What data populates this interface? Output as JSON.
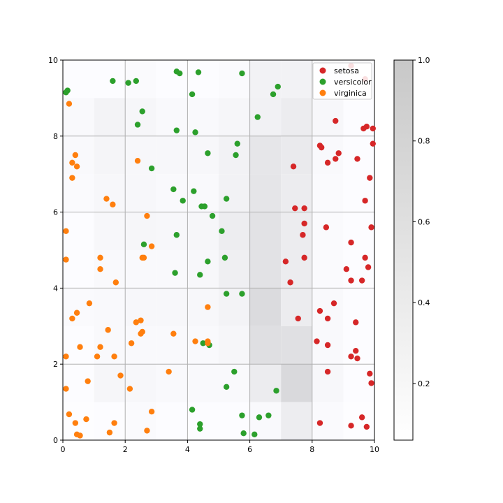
{
  "chart_data": {
    "type": "scatter",
    "title": "",
    "xlabel": "",
    "ylabel": "",
    "xlim": [
      0,
      10
    ],
    "ylim": [
      0,
      10
    ],
    "xticks": [
      "0",
      "2",
      "4",
      "6",
      "8",
      "10"
    ],
    "yticks": [
      "0",
      "2",
      "4",
      "6",
      "8",
      "10"
    ],
    "grid": true,
    "legend_position": "top-right",
    "background_heatmap": {
      "x_bins": [
        0,
        1,
        2,
        3,
        4,
        5,
        6,
        7,
        8,
        9,
        10
      ],
      "y_bins": [
        0,
        1,
        2,
        3,
        4,
        5,
        6,
        7,
        8,
        9,
        10
      ],
      "rows_top_to_bottom": [
        [
          0.05,
          0.05,
          0.08,
          0.05,
          0.05,
          0.08,
          0.2,
          0.2,
          0.1,
          0.05
        ],
        [
          0.1,
          0.18,
          0.14,
          0.1,
          0.1,
          0.14,
          0.22,
          0.3,
          0.12,
          0.05
        ],
        [
          0.1,
          0.15,
          0.12,
          0.12,
          0.12,
          0.2,
          0.38,
          0.32,
          0.1,
          0.05
        ],
        [
          0.08,
          0.12,
          0.12,
          0.1,
          0.1,
          0.2,
          0.4,
          0.3,
          0.08,
          0.05
        ],
        [
          0.05,
          0.12,
          0.14,
          0.12,
          0.14,
          0.28,
          0.45,
          0.3,
          0.08,
          0.05
        ],
        [
          0.05,
          0.1,
          0.1,
          0.1,
          0.12,
          0.25,
          0.45,
          0.3,
          0.08,
          0.05
        ],
        [
          0.08,
          0.1,
          0.12,
          0.12,
          0.12,
          0.18,
          0.55,
          0.3,
          0.1,
          0.05
        ],
        [
          0.05,
          0.1,
          0.1,
          0.1,
          0.1,
          0.14,
          0.5,
          0.48,
          0.1,
          0.05
        ],
        [
          0.05,
          0.14,
          0.12,
          0.1,
          0.1,
          0.1,
          0.3,
          0.58,
          0.12,
          0.05
        ],
        [
          0.03,
          0.05,
          0.08,
          0.05,
          0.05,
          0.05,
          0.1,
          0.28,
          0.08,
          0.03
        ]
      ]
    },
    "colorbar": {
      "min": 0.06,
      "max": 1.0,
      "ticks": [
        "0.2",
        "0.4",
        "0.6",
        "0.8",
        "1.0"
      ],
      "tick_values": [
        0.2,
        0.4,
        0.6,
        0.8,
        1.0
      ]
    },
    "series": [
      {
        "name": "setosa",
        "color": "#d62728",
        "points": [
          [
            9.25,
            9.85
          ],
          [
            9.7,
            9.5
          ],
          [
            8.75,
            8.4
          ],
          [
            9.65,
            8.2
          ],
          [
            9.75,
            8.25
          ],
          [
            9.95,
            8.2
          ],
          [
            9.95,
            7.8
          ],
          [
            8.25,
            7.75
          ],
          [
            8.3,
            7.7
          ],
          [
            8.85,
            7.55
          ],
          [
            8.75,
            7.4
          ],
          [
            8.5,
            7.3
          ],
          [
            9.45,
            7.4
          ],
          [
            7.4,
            7.2
          ],
          [
            9.85,
            6.9
          ],
          [
            9.7,
            6.3
          ],
          [
            7.45,
            6.1
          ],
          [
            7.75,
            6.1
          ],
          [
            7.75,
            5.7
          ],
          [
            8.45,
            5.6
          ],
          [
            9.9,
            5.6
          ],
          [
            7.7,
            5.4
          ],
          [
            9.25,
            5.2
          ],
          [
            7.75,
            4.8
          ],
          [
            9.7,
            4.8
          ],
          [
            7.15,
            4.7
          ],
          [
            9.1,
            4.5
          ],
          [
            9.8,
            4.55
          ],
          [
            7.3,
            4.15
          ],
          [
            9.25,
            4.2
          ],
          [
            9.6,
            4.2
          ],
          [
            8.25,
            3.4
          ],
          [
            8.7,
            3.6
          ],
          [
            7.55,
            3.2
          ],
          [
            8.5,
            3.2
          ],
          [
            9.4,
            3.1
          ],
          [
            8.15,
            2.6
          ],
          [
            8.5,
            2.5
          ],
          [
            9.4,
            2.35
          ],
          [
            9.25,
            2.2
          ],
          [
            9.45,
            2.15
          ],
          [
            8.5,
            1.8
          ],
          [
            9.85,
            1.75
          ],
          [
            9.9,
            1.5
          ],
          [
            8.25,
            0.45
          ],
          [
            9.6,
            0.6
          ],
          [
            9.25,
            0.38
          ],
          [
            9.75,
            0.35
          ]
        ]
      },
      {
        "name": "versicolor",
        "color": "#2ca02c",
        "points": [
          [
            0.1,
            9.15
          ],
          [
            0.15,
            9.2
          ],
          [
            1.6,
            9.45
          ],
          [
            2.1,
            9.4
          ],
          [
            2.35,
            9.45
          ],
          [
            3.65,
            9.7
          ],
          [
            3.75,
            9.65
          ],
          [
            4.35,
            9.68
          ],
          [
            5.75,
            9.65
          ],
          [
            4.15,
            9.1
          ],
          [
            6.9,
            9.3
          ],
          [
            6.75,
            9.1
          ],
          [
            2.55,
            8.65
          ],
          [
            6.25,
            8.5
          ],
          [
            2.4,
            8.3
          ],
          [
            3.65,
            8.15
          ],
          [
            4.25,
            8.1
          ],
          [
            5.6,
            7.8
          ],
          [
            4.65,
            7.55
          ],
          [
            5.55,
            7.5
          ],
          [
            2.85,
            7.15
          ],
          [
            3.55,
            6.6
          ],
          [
            4.2,
            6.55
          ],
          [
            5.25,
            6.35
          ],
          [
            3.85,
            6.3
          ],
          [
            4.45,
            6.15
          ],
          [
            4.55,
            6.15
          ],
          [
            4.8,
            5.9
          ],
          [
            5.1,
            5.5
          ],
          [
            3.65,
            5.4
          ],
          [
            2.6,
            5.15
          ],
          [
            5.2,
            4.8
          ],
          [
            4.65,
            4.7
          ],
          [
            3.6,
            4.4
          ],
          [
            4.4,
            4.35
          ],
          [
            5.25,
            3.85
          ],
          [
            5.75,
            3.85
          ],
          [
            4.5,
            2.55
          ],
          [
            4.7,
            2.5
          ],
          [
            5.5,
            1.8
          ],
          [
            5.25,
            1.4
          ],
          [
            6.85,
            1.3
          ],
          [
            4.15,
            0.8
          ],
          [
            5.75,
            0.65
          ],
          [
            6.3,
            0.6
          ],
          [
            6.6,
            0.65
          ],
          [
            4.4,
            0.42
          ],
          [
            4.4,
            0.3
          ],
          [
            5.8,
            0.18
          ],
          [
            6.15,
            0.15
          ]
        ]
      },
      {
        "name": "virginica",
        "color": "#ff7f0e",
        "points": [
          [
            0.2,
            8.85
          ],
          [
            0.4,
            7.5
          ],
          [
            0.3,
            7.3
          ],
          [
            0.45,
            7.2
          ],
          [
            2.4,
            7.35
          ],
          [
            0.3,
            6.9
          ],
          [
            1.4,
            6.35
          ],
          [
            1.6,
            6.2
          ],
          [
            2.7,
            5.9
          ],
          [
            0.1,
            5.5
          ],
          [
            2.85,
            5.1
          ],
          [
            0.1,
            4.75
          ],
          [
            1.2,
            4.8
          ],
          [
            2.55,
            4.8
          ],
          [
            2.6,
            4.8
          ],
          [
            1.2,
            4.5
          ],
          [
            1.7,
            4.15
          ],
          [
            0.85,
            3.6
          ],
          [
            4.65,
            3.5
          ],
          [
            0.45,
            3.35
          ],
          [
            0.3,
            3.2
          ],
          [
            2.5,
            3.15
          ],
          [
            2.35,
            3.1
          ],
          [
            1.45,
            2.9
          ],
          [
            2.55,
            2.85
          ],
          [
            2.5,
            2.8
          ],
          [
            3.55,
            2.8
          ],
          [
            4.25,
            2.6
          ],
          [
            4.65,
            2.6
          ],
          [
            4.65,
            2.55
          ],
          [
            2.2,
            2.55
          ],
          [
            0.55,
            2.45
          ],
          [
            1.2,
            2.45
          ],
          [
            0.1,
            2.2
          ],
          [
            1.1,
            2.2
          ],
          [
            1.65,
            2.2
          ],
          [
            3.4,
            1.8
          ],
          [
            1.85,
            1.7
          ],
          [
            0.8,
            1.55
          ],
          [
            0.1,
            1.35
          ],
          [
            2.15,
            1.35
          ],
          [
            2.85,
            0.75
          ],
          [
            0.2,
            0.68
          ],
          [
            0.75,
            0.55
          ],
          [
            0.4,
            0.45
          ],
          [
            1.65,
            0.45
          ],
          [
            2.7,
            0.25
          ],
          [
            1.5,
            0.2
          ],
          [
            0.45,
            0.15
          ],
          [
            0.55,
            0.12
          ]
        ]
      }
    ]
  }
}
